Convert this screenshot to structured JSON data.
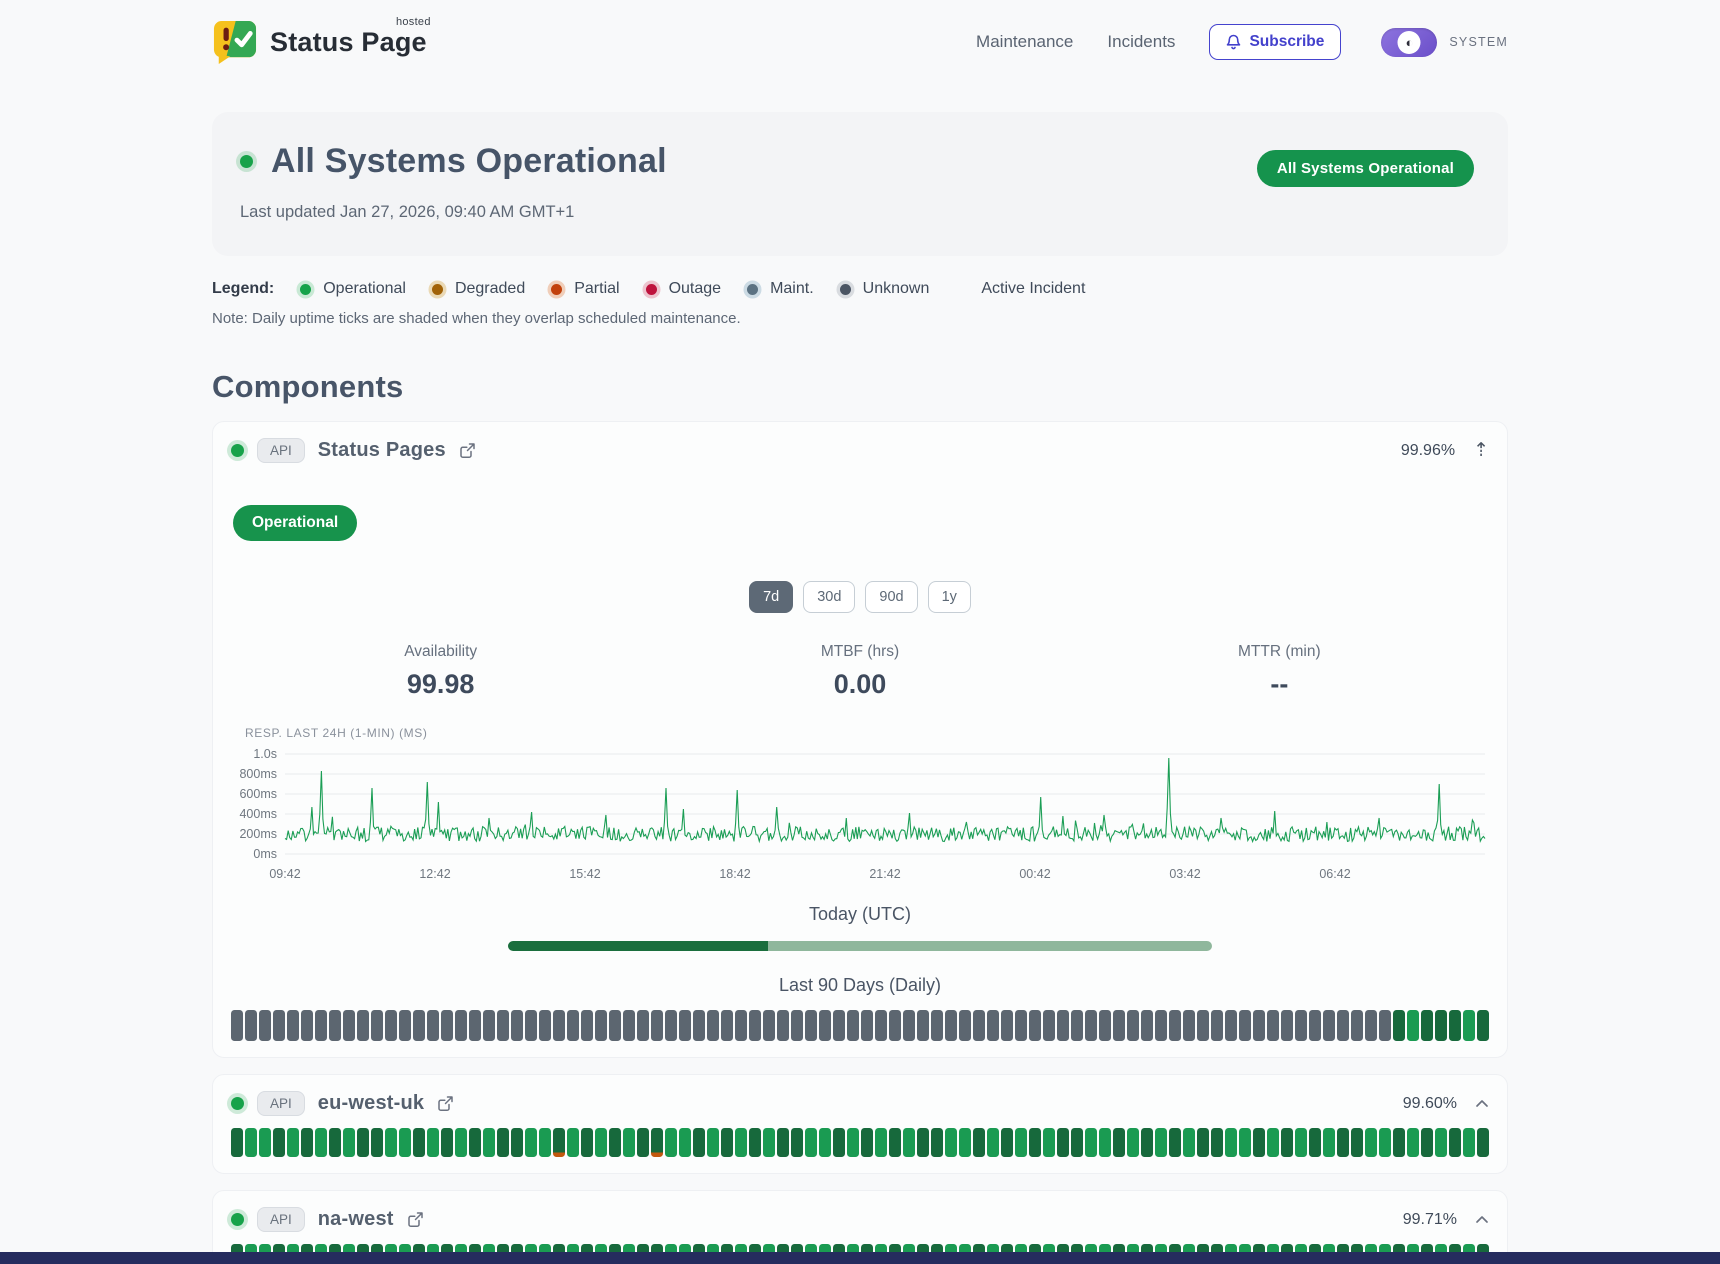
{
  "header": {
    "brand": "Status Page",
    "brand_superscript": "hosted",
    "nav": [
      {
        "label": "Maintenance"
      },
      {
        "label": "Incidents"
      }
    ],
    "subscribe_label": "Subscribe",
    "theme_label": "SYSTEM"
  },
  "hero": {
    "title": "All Systems Operational",
    "last_updated": "Last updated Jan 27, 2026, 09:40 AM GMT+1",
    "badge": "All Systems Operational",
    "badge_color": "#15934d"
  },
  "legend": {
    "label": "Legend:",
    "items": [
      {
        "label": "Operational",
        "dot": "#16a34a",
        "ring": "#c9e9d5"
      },
      {
        "label": "Degraded",
        "dot": "#a16207",
        "ring": "#ead9b5"
      },
      {
        "label": "Partial",
        "dot": "#c2410c",
        "ring": "#f0ceb9"
      },
      {
        "label": "Outage",
        "dot": "#be123c",
        "ring": "#edc4ce"
      },
      {
        "label": "Maint.",
        "dot": "#5b7282",
        "ring": "#ccdbe4"
      },
      {
        "label": "Unknown",
        "dot": "#4b5563",
        "ring": "#d9dce0"
      },
      {
        "label": "Active Incident",
        "dot": null,
        "ring": null
      }
    ],
    "note": "Note: Daily uptime ticks are shaded when they overlap scheduled maintenance."
  },
  "components": {
    "title": "Components",
    "expanded": {
      "badge": "API",
      "name": "Status Pages",
      "uptime": "99.96%",
      "status_label": "Operational",
      "ranges": [
        "7d",
        "30d",
        "90d",
        "1y"
      ],
      "active_range": "7d",
      "stats": [
        {
          "label": "Availability",
          "value": "99.98"
        },
        {
          "label": "MTBF (hrs)",
          "value": "0.00"
        },
        {
          "label": "MTTR (min)",
          "value": "--"
        }
      ],
      "today_label": "Today (UTC)",
      "today_progress": 0.37,
      "history_label": "Last 90 Days (Daily)",
      "ticks": "xxxxxxxxxxxxxxxxxxxxxxxxxxxxxxxxxxxxxxxxxxxxxxxxxxxxxxxxxxxxxxxxxxxxxxxxxxxxxxxxxxxdmdddmd"
    },
    "rows": [
      {
        "badge": "API",
        "name": "eu-west-uk",
        "uptime": "99.60%",
        "ticks": "dmmdmdmdmddmmdmdmdmddmmpmdmdmdpmmdmdmdmddmmdmdmdmddmmdmdmdmddmmdmdmdmddmmdmdmdmddmmdmdmdmd"
      },
      {
        "badge": "API",
        "name": "na-west",
        "uptime": "99.71%",
        "ticks": "dmmdmdmdmddmmdmdmdmddmmdmdmdmpdmmdmdmdmddmmdmdmdmddmmdmdmdmddmmdmdmdmddmmdmdmdmddmmdmdmdmd"
      }
    ]
  },
  "chart_data": {
    "type": "line",
    "title": "RESP. LAST 24H (1-MIN) (MS)",
    "line_color": "#1b9e55",
    "grid": true,
    "x_ticks": [
      "09:42",
      "12:42",
      "15:42",
      "18:42",
      "21:42",
      "00:42",
      "03:42",
      "06:42"
    ],
    "y_ticks": [
      {
        "label": "1.0s",
        "value": 1000
      },
      {
        "label": "800ms",
        "value": 800
      },
      {
        "label": "600ms",
        "value": 600
      },
      {
        "label": "400ms",
        "value": 400
      },
      {
        "label": "200ms",
        "value": 200
      },
      {
        "label": "0ms",
        "value": 0
      }
    ],
    "ylim": [
      0,
      1000
    ],
    "baseline_ms": [
      125,
      275
    ],
    "spikes": [
      [
        0.022,
        470
      ],
      [
        0.03,
        830
      ],
      [
        0.072,
        660
      ],
      [
        0.118,
        720
      ],
      [
        0.128,
        520
      ],
      [
        0.17,
        360
      ],
      [
        0.205,
        420
      ],
      [
        0.268,
        390
      ],
      [
        0.318,
        660
      ],
      [
        0.332,
        450
      ],
      [
        0.377,
        640
      ],
      [
        0.41,
        470
      ],
      [
        0.468,
        360
      ],
      [
        0.52,
        410
      ],
      [
        0.568,
        320
      ],
      [
        0.63,
        570
      ],
      [
        0.648,
        380
      ],
      [
        0.682,
        390
      ],
      [
        0.737,
        960
      ],
      [
        0.78,
        360
      ],
      [
        0.825,
        430
      ],
      [
        0.868,
        320
      ],
      [
        0.912,
        360
      ],
      [
        0.962,
        700
      ],
      [
        0.99,
        340
      ]
    ]
  }
}
